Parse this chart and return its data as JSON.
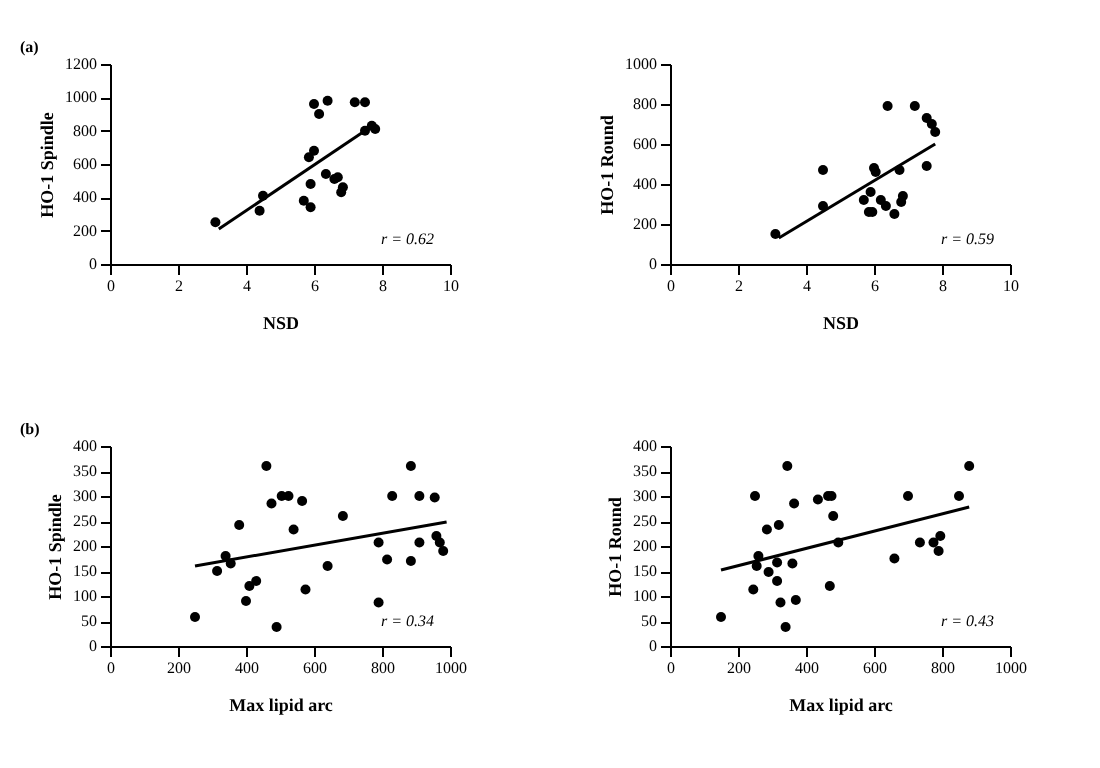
{
  "chart_data": [
    {
      "type": "scatter",
      "title": "(a)",
      "xlabel": "NSD",
      "ylabel": "HO-1 Spindle",
      "xlim": [
        0,
        10
      ],
      "xticks": [
        0,
        2,
        4,
        6,
        8,
        10
      ],
      "ylim": [
        0,
        1200
      ],
      "yticks": [
        0,
        200,
        400,
        600,
        800,
        1000,
        1200
      ],
      "grid": false,
      "marker": "circle",
      "annotations": [
        "r = 0.62"
      ],
      "series": [
        {
          "color": "#000000",
          "x": [
            3.1,
            4.4,
            4.5,
            5.7,
            5.9,
            5.9,
            5.85,
            6.0,
            6.0,
            6.15,
            6.4,
            6.35,
            6.6,
            6.7,
            6.8,
            6.85,
            7.2,
            7.5,
            7.5,
            7.7,
            7.8
          ],
          "values": [
            250,
            320,
            410,
            380,
            480,
            340,
            640,
            680,
            960,
            900,
            980,
            540,
            510,
            520,
            430,
            460,
            970,
            970,
            800,
            830,
            810
          ]
        },
        {
          "type": "line",
          "marker": "none",
          "color": "#000000",
          "x": [
            3.2,
            7.5
          ],
          "values": [
            210,
            800
          ]
        }
      ]
    },
    {
      "type": "scatter",
      "xlabel": "NSD",
      "ylabel": "HO-1 Round",
      "xlim": [
        0,
        10
      ],
      "xticks": [
        0,
        2,
        4,
        6,
        8,
        10
      ],
      "ylim": [
        0,
        1000
      ],
      "yticks": [
        0,
        200,
        400,
        600,
        800,
        1000
      ],
      "grid": false,
      "marker": "circle",
      "annotations": [
        "r = 0.59"
      ],
      "series": [
        {
          "color": "#000000",
          "x": [
            3.1,
            4.5,
            4.5,
            5.7,
            5.85,
            5.9,
            5.95,
            6.0,
            6.05,
            6.2,
            6.35,
            6.4,
            6.6,
            6.75,
            6.8,
            6.85,
            7.2,
            7.55,
            7.55,
            7.7,
            7.8
          ],
          "values": [
            150,
            290,
            470,
            320,
            260,
            360,
            260,
            480,
            460,
            320,
            290,
            790,
            250,
            470,
            310,
            340,
            790,
            730,
            490,
            700,
            660
          ]
        },
        {
          "type": "line",
          "marker": "none",
          "color": "#000000",
          "x": [
            3.2,
            7.8
          ],
          "values": [
            130,
            600
          ]
        }
      ]
    },
    {
      "type": "scatter",
      "title": "(b)",
      "xlabel": "Max  lipid arc",
      "ylabel": "HO-1 Spindle",
      "xlim": [
        0,
        1000
      ],
      "xticks": [
        0,
        200,
        400,
        600,
        800,
        1000
      ],
      "ylim": [
        0,
        400
      ],
      "yticks": [
        0,
        50,
        100,
        150,
        200,
        250,
        300,
        350,
        400
      ],
      "grid": false,
      "marker": "circle",
      "annotations": [
        "r = 0.34"
      ],
      "series": [
        {
          "color": "#000000",
          "x": [
            250,
            315,
            340,
            355,
            380,
            400,
            410,
            430,
            460,
            475,
            490,
            505,
            525,
            540,
            565,
            575,
            640,
            685,
            790,
            790,
            815,
            830,
            885,
            885,
            910,
            910,
            955,
            960,
            970,
            980
          ],
          "values": [
            58,
            150,
            180,
            165,
            242,
            90,
            120,
            130,
            360,
            285,
            38,
            300,
            300,
            233,
            290,
            113,
            160,
            260,
            207,
            87,
            173,
            300,
            360,
            170,
            300,
            207,
            297,
            220,
            207,
            190
          ]
        },
        {
          "type": "line",
          "marker": "none",
          "color": "#000000",
          "x": [
            250,
            990
          ],
          "values": [
            160,
            248
          ]
        }
      ]
    },
    {
      "type": "scatter",
      "xlabel": "Max  lipid arc",
      "ylabel": "HO-1 Round",
      "xlim": [
        0,
        1000
      ],
      "xticks": [
        0,
        200,
        400,
        600,
        800,
        1000
      ],
      "ylim": [
        0,
        400
      ],
      "yticks": [
        0,
        50,
        100,
        150,
        200,
        250,
        300,
        350,
        400
      ],
      "grid": false,
      "marker": "circle",
      "annotations": [
        "r = 0.43"
      ],
      "series": [
        {
          "color": "#000000",
          "x": [
            150,
            245,
            250,
            255,
            260,
            285,
            290,
            315,
            315,
            320,
            325,
            340,
            345,
            360,
            365,
            370,
            435,
            465,
            475,
            470,
            480,
            495,
            660,
            700,
            735,
            775,
            790,
            795,
            850,
            880
          ],
          "values": [
            58,
            113,
            300,
            160,
            180,
            233,
            148,
            130,
            167,
            242,
            87,
            38,
            360,
            165,
            285,
            92,
            293,
            300,
            300,
            120,
            260,
            207,
            175,
            300,
            207,
            207,
            190,
            220,
            300,
            360
          ]
        },
        {
          "type": "line",
          "marker": "none",
          "color": "#000000",
          "x": [
            150,
            880
          ],
          "values": [
            152,
            278
          ]
        }
      ]
    }
  ]
}
